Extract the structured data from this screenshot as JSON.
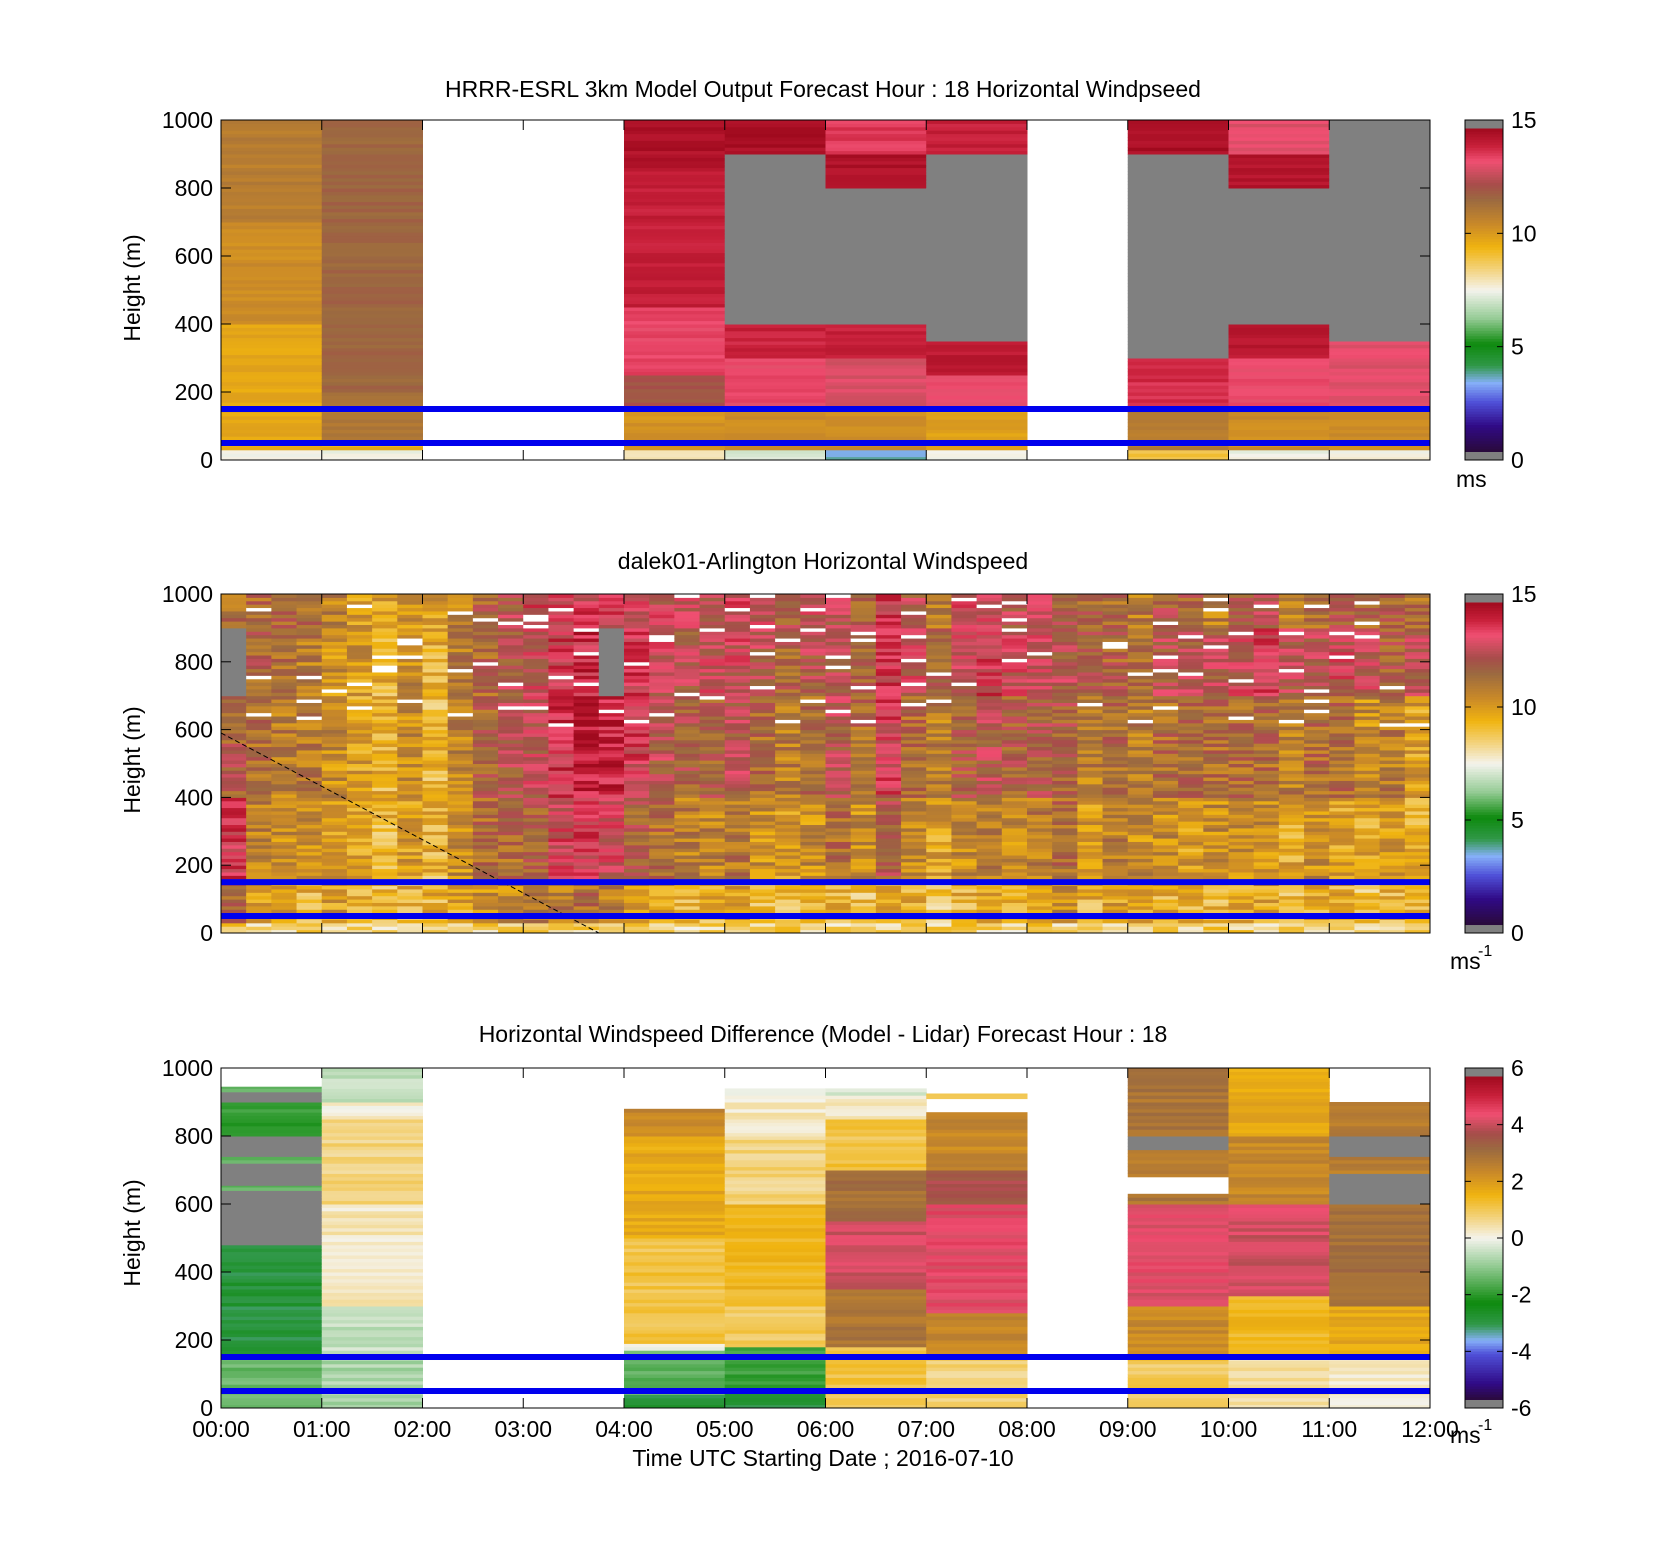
{
  "chart_data": [
    {
      "type": "heatmap",
      "title": "HRRR-ESRL 3km Model Output   Forecast Hour : 18 Horizontal Windpseed",
      "ylabel": "Height (m)",
      "ylim": [
        0,
        1000
      ],
      "yticks": [
        "0",
        "200",
        "400",
        "600",
        "800",
        "1000"
      ],
      "x_hours": [
        0,
        12
      ],
      "colorbar": {
        "range": [
          0,
          15
        ],
        "ticks": [
          "0",
          "5",
          "10",
          "15"
        ],
        "unit": "ms",
        "unit_sup": ""
      },
      "reference_lines_m": [
        50,
        150
      ],
      "columns": [
        {
          "start_h": 0,
          "end_h": 1,
          "layers": [
            [
              0,
              30,
              7.5
            ],
            [
              30,
              50,
              9.5
            ],
            [
              50,
              400,
              9.8
            ],
            [
              400,
              700,
              10.5
            ],
            [
              700,
              1000,
              11.0
            ]
          ]
        },
        {
          "start_h": 1,
          "end_h": 2,
          "layers": [
            [
              0,
              30,
              7.5
            ],
            [
              30,
              50,
              9.6
            ],
            [
              50,
              200,
              11.2
            ],
            [
              200,
              1000,
              11.8
            ]
          ]
        },
        {
          "start_h": 4,
          "end_h": 5,
          "layers": [
            [
              0,
              30,
              8.0
            ],
            [
              30,
              150,
              10.3
            ],
            [
              150,
              250,
              12.2
            ],
            [
              250,
              450,
              13.6
            ],
            [
              450,
              850,
              14.3
            ],
            [
              850,
              1000,
              14.7
            ]
          ]
        },
        {
          "start_h": 5,
          "end_h": 6,
          "layers": [
            [
              0,
              30,
              7.0
            ],
            [
              30,
              150,
              10.5
            ],
            [
              150,
              300,
              13.5
            ],
            [
              300,
              400,
              14.2
            ],
            [
              400,
              900,
              null
            ],
            [
              900,
              1000,
              14.8
            ]
          ]
        },
        {
          "start_h": 6,
          "end_h": 7,
          "layers": [
            [
              0,
              30,
              3.5
            ],
            [
              30,
              150,
              10.5
            ],
            [
              150,
              300,
              13.2
            ],
            [
              300,
              400,
              14.3
            ],
            [
              400,
              800,
              null
            ],
            [
              800,
              900,
              14.7
            ],
            [
              900,
              1000,
              13.8
            ]
          ]
        },
        {
          "start_h": 7,
          "end_h": 8,
          "layers": [
            [
              0,
              30,
              7.5
            ],
            [
              30,
              150,
              10.0
            ],
            [
              150,
              250,
              13.4
            ],
            [
              250,
              350,
              14.4
            ],
            [
              350,
              900,
              null
            ],
            [
              900,
              1000,
              14.3
            ]
          ]
        },
        {
          "start_h": 9,
          "end_h": 10,
          "layers": [
            [
              0,
              30,
              9.0
            ],
            [
              30,
              150,
              11.0
            ],
            [
              150,
              300,
              14.0
            ],
            [
              300,
              900,
              null
            ],
            [
              900,
              1000,
              14.8
            ]
          ]
        },
        {
          "start_h": 10,
          "end_h": 11,
          "layers": [
            [
              0,
              30,
              7.5
            ],
            [
              30,
              150,
              10.5
            ],
            [
              150,
              300,
              13.5
            ],
            [
              300,
              400,
              14.5
            ],
            [
              400,
              800,
              null
            ],
            [
              800,
              900,
              14.6
            ],
            [
              900,
              1000,
              13.3
            ]
          ]
        },
        {
          "start_h": 11,
          "end_h": 12,
          "layers": [
            [
              0,
              30,
              7.5
            ],
            [
              30,
              150,
              10.5
            ],
            [
              150,
              350,
              13.3
            ],
            [
              350,
              1000,
              null
            ]
          ]
        }
      ]
    },
    {
      "type": "heatmap",
      "title": "dalek01-Arlington  Horizontal Windspeed",
      "ylabel": "Height (m)",
      "ylim": [
        0,
        1000
      ],
      "yticks": [
        "0",
        "200",
        "400",
        "600",
        "800",
        "1000"
      ],
      "x_hours": [
        0,
        12
      ],
      "colorbar": {
        "range": [
          0,
          15
        ],
        "ticks": [
          "0",
          "5",
          "10",
          "15"
        ],
        "unit": "ms",
        "unit_sup": "-1"
      },
      "reference_lines_m": [
        50,
        150
      ],
      "profile_step_minutes": 15,
      "dashed_line": {
        "x_hours": [
          0,
          3.75
        ],
        "y_m": [
          590,
          0
        ]
      },
      "profiles": [
        [
          11.5,
          13.6,
          12.0,
          null,
          11.5
        ],
        [
          10.0,
          11.0,
          11.5,
          11.8,
          11.5
        ],
        [
          9.8,
          10.5,
          11.0,
          11.5,
          11.8
        ],
        [
          9.5,
          10.5,
          11.2,
          11.0,
          11.5
        ],
        [
          10.0,
          10.0,
          10.5,
          10.5,
          11.0
        ],
        [
          9.5,
          9.8,
          10.0,
          10.2,
          10.0
        ],
        [
          9.3,
          9.4,
          9.5,
          9.5,
          9.8
        ],
        [
          9.5,
          10.2,
          10.5,
          10.5,
          10.5
        ],
        [
          9.5,
          9.4,
          9.3,
          9.6,
          10.0
        ],
        [
          9.8,
          10.5,
          10.8,
          11.0,
          10.8
        ],
        [
          10.5,
          11.5,
          11.8,
          11.6,
          11.8
        ],
        [
          10.5,
          11.5,
          12.3,
          12.5,
          12.4
        ],
        [
          10.8,
          12.0,
          12.8,
          13.0,
          13.1
        ],
        [
          11.0,
          13.2,
          13.8,
          13.5,
          13.2
        ],
        [
          11.5,
          13.5,
          14.5,
          14.0,
          13.5
        ],
        [
          11.0,
          13.0,
          14.2,
          null,
          13.5
        ],
        [
          10.5,
          12.0,
          13.5,
          13.8,
          13.4
        ],
        [
          10.0,
          11.5,
          12.5,
          13.0,
          13.0
        ],
        [
          9.5,
          11.0,
          12.0,
          12.5,
          12.8
        ],
        [
          9.5,
          10.8,
          12.0,
          13.0,
          12.8
        ],
        [
          9.8,
          11.2,
          12.5,
          13.0,
          13.2
        ],
        [
          9.3,
          10.5,
          11.5,
          12.5,
          13.0
        ],
        [
          9.0,
          10.2,
          11.0,
          11.8,
          12.0
        ],
        [
          9.6,
          10.5,
          11.5,
          12.5,
          13.0
        ],
        [
          9.5,
          11.5,
          12.5,
          12.5,
          12.5
        ],
        [
          9.0,
          10.5,
          11.5,
          12.0,
          12.0
        ],
        [
          9.5,
          12.0,
          13.5,
          13.5,
          13.5
        ],
        [
          9.5,
          10.5,
          11.5,
          13.0,
          12.5
        ],
        [
          9.0,
          10.0,
          11.0,
          11.8,
          11.0
        ],
        [
          9.5,
          10.5,
          12.0,
          13.0,
          13.0
        ],
        [
          9.8,
          11.0,
          12.5,
          13.5,
          13.0
        ],
        [
          9.8,
          10.5,
          12.0,
          13.0,
          12.5
        ],
        [
          10.2,
          11.0,
          12.2,
          13.0,
          12.8
        ],
        [
          10.5,
          11.5,
          12.0,
          12.5,
          12.0
        ],
        [
          9.5,
          10.2,
          11.0,
          12.0,
          11.8
        ],
        [
          10.0,
          11.0,
          11.5,
          11.8,
          11.5
        ],
        [
          10.0,
          10.5,
          11.0,
          11.5,
          11.0
        ],
        [
          9.5,
          10.5,
          11.5,
          12.5,
          12.0
        ],
        [
          9.5,
          10.0,
          11.5,
          12.5,
          12.0
        ],
        [
          9.2,
          10.5,
          11.5,
          12.5,
          11.0
        ],
        [
          9.8,
          10.5,
          11.5,
          13.0,
          12.0
        ],
        [
          10.0,
          10.5,
          11.5,
          13.5,
          12.5
        ],
        [
          9.0,
          9.8,
          11.0,
          12.5,
          11.0
        ],
        [
          9.5,
          10.5,
          11.5,
          12.5,
          11.5
        ],
        [
          9.5,
          10.0,
          11.5,
          13.0,
          12.0
        ],
        [
          9.0,
          9.8,
          10.5,
          13.0,
          11.5
        ],
        [
          9.5,
          10.0,
          11.0,
          12.0,
          11.8
        ],
        [
          9.2,
          9.5,
          10.0,
          12.5,
          11.5
        ]
      ]
    },
    {
      "type": "heatmap",
      "title": "Horizontal Windspeed Difference (Model - Lidar) Forecast Hour : 18",
      "ylabel": "Height (m)",
      "xlabel": "Time UTC  Starting Date ; 2016-07-10",
      "ylim": [
        0,
        1000
      ],
      "yticks": [
        "0",
        "200",
        "400",
        "600",
        "800",
        "1000"
      ],
      "xticks": [
        "00:00",
        "01:00",
        "02:00",
        "03:00",
        "04:00",
        "05:00",
        "06:00",
        "07:00",
        "08:00",
        "09:00",
        "10:00",
        "11:00",
        "12:00"
      ],
      "x_hours": [
        0,
        12
      ],
      "colorbar": {
        "range": [
          -6,
          6
        ],
        "ticks": [
          "-6",
          "-4",
          "-2",
          "0",
          "2",
          "4",
          "6"
        ],
        "unit": "ms",
        "unit_sup": "-1"
      },
      "reference_lines_m": [
        50,
        150
      ],
      "columns": [
        {
          "start_h": 0,
          "end_h": 1,
          "layers": [
            [
              0,
              150,
              -1.5
            ],
            [
              150,
              480,
              -3.0
            ],
            [
              480,
              640,
              null
            ],
            [
              640,
              655,
              -1.5
            ],
            [
              655,
              720,
              null
            ],
            [
              720,
              740,
              -1.5
            ],
            [
              740,
              800,
              null
            ],
            [
              800,
              900,
              -2.0
            ],
            [
              900,
              930,
              null
            ],
            [
              930,
              945,
              -1.5
            ]
          ]
        },
        {
          "start_h": 1,
          "end_h": 2,
          "layers": [
            [
              0,
              150,
              -0.8
            ],
            [
              150,
              300,
              -0.5
            ],
            [
              300,
              600,
              0.3
            ],
            [
              600,
              850,
              0.8
            ],
            [
              850,
              900,
              0.2
            ],
            [
              900,
              1000,
              -0.5
            ]
          ]
        },
        {
          "start_h": 4,
          "end_h": 5,
          "layers": [
            [
              0,
              40,
              -3.0
            ],
            [
              40,
              170,
              -1.5
            ],
            [
              170,
              190,
              0.1
            ],
            [
              190,
              500,
              1.2
            ],
            [
              500,
              800,
              1.8
            ],
            [
              800,
              880,
              2.5
            ]
          ]
        },
        {
          "start_h": 5,
          "end_h": 6,
          "layers": [
            [
              0,
              50,
              -3.0
            ],
            [
              50,
              180,
              -2.0
            ],
            [
              180,
              300,
              1.0
            ],
            [
              300,
              600,
              1.5
            ],
            [
              600,
              800,
              0.8
            ],
            [
              800,
              900,
              0.3
            ],
            [
              900,
              940,
              0.2
            ]
          ]
        },
        {
          "start_h": 6,
          "end_h": 7,
          "layers": [
            [
              0,
              180,
              1.2
            ],
            [
              180,
              350,
              3.0
            ],
            [
              350,
              550,
              4.3
            ],
            [
              550,
              700,
              3.2
            ],
            [
              700,
              850,
              1.2
            ],
            [
              850,
              920,
              0.2
            ],
            [
              920,
              940,
              -0.3
            ]
          ]
        },
        {
          "start_h": 7,
          "end_h": 8,
          "layers": [
            [
              0,
              150,
              0.8
            ],
            [
              150,
              280,
              2.5
            ],
            [
              280,
              600,
              4.6
            ],
            [
              600,
              700,
              3.8
            ],
            [
              700,
              870,
              2.5
            ],
            [
              910,
              925,
              1.0
            ]
          ]
        },
        {
          "start_h": 9,
          "end_h": 10,
          "layers": [
            [
              0,
              150,
              1.0
            ],
            [
              150,
              300,
              2.5
            ],
            [
              300,
              600,
              4.5
            ],
            [
              600,
              630,
              3.0
            ],
            [
              680,
              760,
              2.8
            ],
            [
              760,
              800,
              null
            ],
            [
              800,
              1000,
              3.0
            ]
          ]
        },
        {
          "start_h": 10,
          "end_h": 11,
          "layers": [
            [
              0,
              150,
              0.5
            ],
            [
              150,
              330,
              1.5
            ],
            [
              330,
              600,
              4.3
            ],
            [
              600,
              800,
              2.5
            ],
            [
              800,
              1000,
              1.8
            ]
          ]
        },
        {
          "start_h": 11,
          "end_h": 12,
          "layers": [
            [
              0,
              150,
              0.3
            ],
            [
              150,
              300,
              1.8
            ],
            [
              300,
              600,
              3.2
            ],
            [
              600,
              690,
              null
            ],
            [
              690,
              740,
              2.8
            ],
            [
              740,
              800,
              null
            ],
            [
              800,
              900,
              2.8
            ]
          ]
        }
      ]
    }
  ]
}
